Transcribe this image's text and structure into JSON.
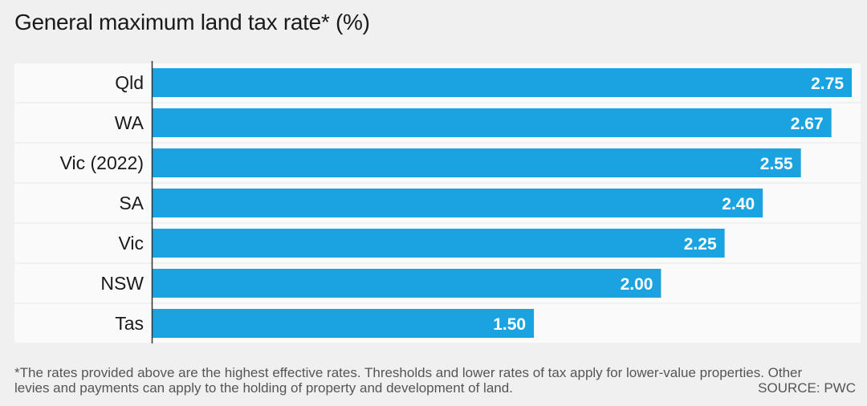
{
  "title": "General maximum land tax rate* (%)",
  "footnote": "*The rates provided above are the highest effective rates. Thresholds and lower rates of tax apply for lower-value properties. Other levies and payments can apply to the holding of property and development of land.",
  "source": "SOURCE: PWC",
  "colors": {
    "bar": "#1aa3e0",
    "row_band": "#fafafa",
    "background": "#f0f0f0",
    "axis": "#333333",
    "value_text": "#ffffff"
  },
  "chart_data": {
    "type": "bar",
    "orientation": "horizontal",
    "categories": [
      "Qld",
      "WA",
      "Vic (2022)",
      "SA",
      "Vic",
      "NSW",
      "Tas"
    ],
    "values": [
      2.75,
      2.67,
      2.55,
      2.4,
      2.25,
      2.0,
      1.5
    ],
    "value_labels": [
      "2.75",
      "2.67",
      "2.55",
      "2.40",
      "2.25",
      "2.00",
      "1.50"
    ],
    "title": "General maximum land tax rate* (%)",
    "xlabel": "",
    "ylabel": "",
    "xlim": [
      0,
      2.75
    ],
    "grid": false,
    "legend": "none"
  }
}
